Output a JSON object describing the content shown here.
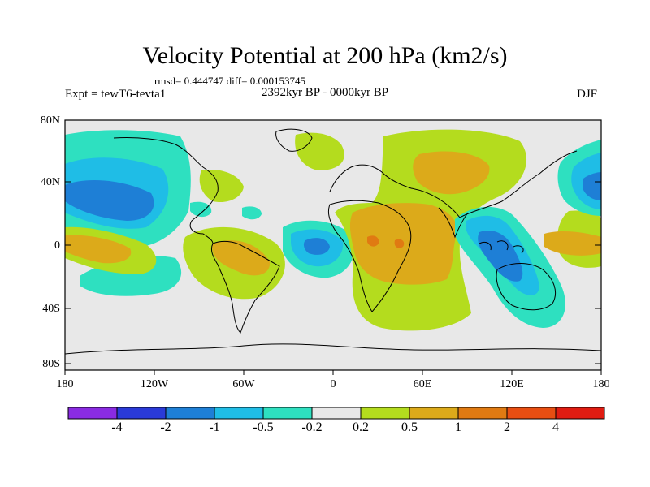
{
  "title": "Velocity Potential at 200 hPa (km2/s)",
  "stats": "rmsd= 0.444747 diff= 0.000153745",
  "experiment": "Expt = tewT6-tevta1",
  "period": "2392kyr BP - 0000kyr BP",
  "season": "DJF",
  "lat_labels": [
    "80N",
    "40N",
    "0",
    "40S",
    "80S"
  ],
  "lon_labels": [
    "180",
    "120W",
    "60W",
    "0",
    "60E",
    "120E",
    "180"
  ],
  "colorbar": {
    "labels": [
      "-4",
      "-2",
      "-1",
      "-0.5",
      "-0.2",
      "0.2",
      "0.5",
      "1",
      "2",
      "4"
    ],
    "colors": [
      "#8a2be2",
      "#2a3ad8",
      "#1e7fd6",
      "#1fbde6",
      "#2ee0c0",
      "#e8e8e8",
      "#b4dc1e",
      "#dcaa1a",
      "#e07a12",
      "#e84e12",
      "#e01c12"
    ]
  }
}
